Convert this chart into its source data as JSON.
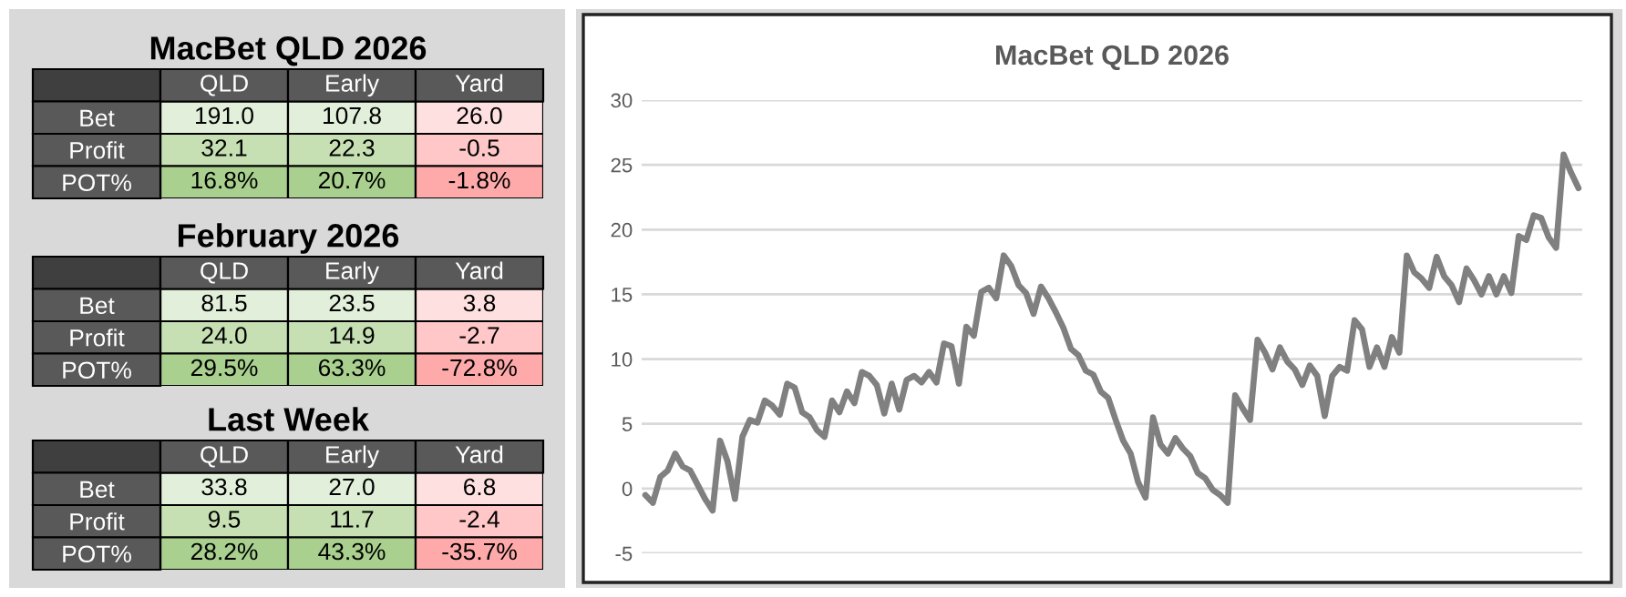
{
  "chart_data": [
    {
      "type": "other",
      "title": "MacBet QLD 2026",
      "categories": [
        "QLD",
        "Early",
        "Yard"
      ],
      "y_categories": [
        "Bet",
        "Profit",
        "POT%"
      ],
      "cell_labels": [
        [
          "191.0",
          "107.8",
          "26.0"
        ],
        [
          "32.1",
          "22.3",
          "-0.5"
        ],
        [
          "16.8%",
          "20.7%",
          "-1.8%"
        ]
      ],
      "colors": [
        [
          "#e2efda",
          "#e2efda",
          "#ffe0e0"
        ],
        [
          "#c6e0b4",
          "#c6e0b4",
          "#ffc7c7"
        ],
        [
          "#a9d08e",
          "#a9d08e",
          "#ffaaaa"
        ]
      ]
    },
    {
      "type": "other",
      "title": "February 2026",
      "categories": [
        "QLD",
        "Early",
        "Yard"
      ],
      "y_categories": [
        "Bet",
        "Profit",
        "POT%"
      ],
      "cell_labels": [
        [
          "81.5",
          "23.5",
          "3.8"
        ],
        [
          "24.0",
          "14.9",
          "-2.7"
        ],
        [
          "29.5%",
          "63.3%",
          "-72.8%"
        ]
      ],
      "colors": [
        [
          "#e2efda",
          "#e2efda",
          "#ffe0e0"
        ],
        [
          "#c6e0b4",
          "#c6e0b4",
          "#ffc7c7"
        ],
        [
          "#a9d08e",
          "#a9d08e",
          "#ffaaaa"
        ]
      ]
    },
    {
      "type": "other",
      "title": "Last Week",
      "categories": [
        "QLD",
        "Early",
        "Yard"
      ],
      "y_categories": [
        "Bet",
        "Profit",
        "POT%"
      ],
      "cell_labels": [
        [
          "33.8",
          "27.0",
          "6.8"
        ],
        [
          "9.5",
          "11.7",
          "-2.4"
        ],
        [
          "28.2%",
          "43.3%",
          "-35.7%"
        ]
      ],
      "colors": [
        [
          "#e2efda",
          "#e2efda",
          "#ffe0e0"
        ],
        [
          "#c6e0b4",
          "#c6e0b4",
          "#ffc7c7"
        ],
        [
          "#a9d08e",
          "#a9d08e",
          "#ffaaaa"
        ]
      ]
    },
    {
      "type": "line",
      "title": "MacBet QLD 2026",
      "color": "#808080",
      "categories": [
        null,
        null,
        null,
        null,
        null,
        null,
        null,
        null,
        null,
        null,
        null,
        null,
        null,
        null,
        null,
        null,
        null,
        null,
        null,
        null,
        null,
        null,
        null,
        null,
        null,
        null,
        null,
        null,
        null,
        null,
        null,
        null,
        null,
        null,
        null,
        null,
        null,
        null,
        null,
        null,
        null,
        null,
        null,
        null,
        null,
        null,
        null,
        null,
        null,
        null,
        null,
        null,
        null,
        null,
        null,
        null,
        null,
        null,
        null,
        null,
        null,
        null,
        null,
        null,
        null,
        null,
        null,
        null,
        null,
        null,
        null,
        null,
        null,
        null,
        null,
        null,
        null,
        null,
        null,
        null,
        null,
        null,
        null,
        null,
        null,
        null,
        null,
        null,
        null,
        null,
        null,
        null,
        null,
        null,
        null,
        null,
        null,
        null,
        null,
        null,
        null,
        null,
        null,
        null,
        null,
        null,
        null,
        null,
        null,
        null,
        null,
        null,
        null,
        null,
        null,
        null,
        null,
        null,
        null,
        null,
        null,
        null,
        null,
        null,
        null,
        null
      ],
      "values": [
        -0.5,
        -1.1,
        0.9,
        1.4,
        2.7,
        1.7,
        1.4,
        0.3,
        -0.8,
        -1.7,
        3.7,
        2.1,
        -0.8,
        4.0,
        5.3,
        5.1,
        6.8,
        6.4,
        5.7,
        8.1,
        7.8,
        5.9,
        5.5,
        4.5,
        4.0,
        6.8,
        5.9,
        7.5,
        6.6,
        9.0,
        8.7,
        8.0,
        5.8,
        8.1,
        6.1,
        8.4,
        8.7,
        8.2,
        9.0,
        8.2,
        11.2,
        11.0,
        8.1,
        12.5,
        11.8,
        15.2,
        15.5,
        14.7,
        18.0,
        17.2,
        15.7,
        15.1,
        13.5,
        15.6,
        14.7,
        13.6,
        12.4,
        10.8,
        10.3,
        9.1,
        8.8,
        7.5,
        7.0,
        5.3,
        3.7,
        2.7,
        0.5,
        -0.7,
        5.5,
        3.4,
        2.7,
        3.9,
        3.1,
        2.5,
        1.2,
        0.8,
        -0.1,
        -0.5,
        -1.1,
        7.2,
        6.2,
        5.3,
        11.5,
        10.5,
        9.2,
        10.9,
        9.8,
        9.2,
        8.0,
        9.5,
        8.7,
        5.6,
        8.7,
        9.4,
        9.1,
        13.0,
        12.3,
        9.4,
        10.9,
        9.4,
        11.7,
        10.5,
        18.0,
        16.7,
        16.2,
        15.5,
        17.9,
        16.4,
        15.7,
        14.4,
        17.0,
        16.1,
        15.0,
        16.4,
        15.0,
        16.4,
        15.1,
        19.5,
        19.2,
        21.1,
        20.9,
        19.4,
        18.6,
        25.8,
        24.4,
        23.2
      ],
      "ylim": [
        -5,
        30
      ],
      "yticks": [
        -5,
        0,
        5,
        10,
        15,
        20,
        25,
        30
      ],
      "grid": "y",
      "tick_labels": "y"
    }
  ]
}
